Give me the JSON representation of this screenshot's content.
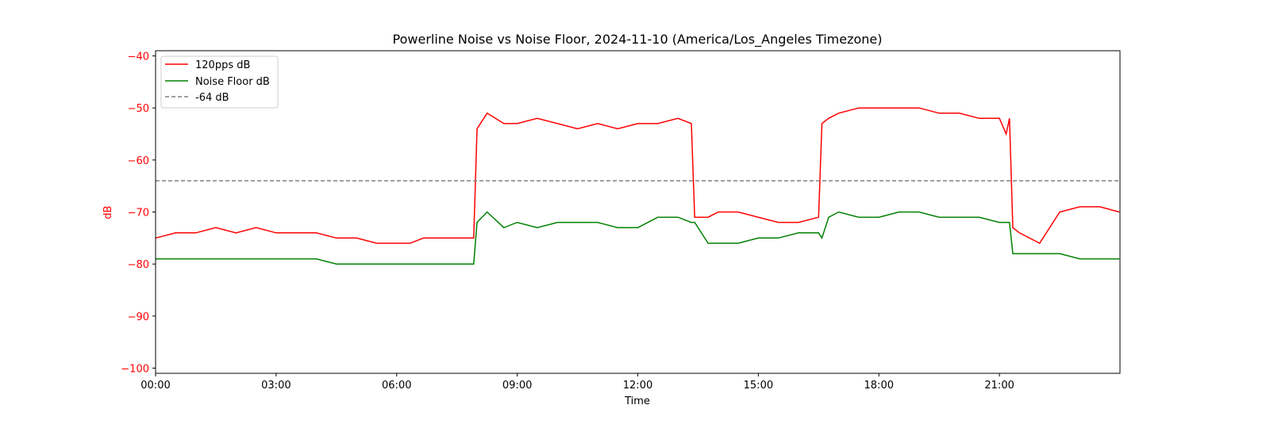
{
  "chart_data": {
    "type": "line",
    "title": "Powerline Noise vs Noise Floor, 2024-11-10 (America/Los_Angeles Timezone)",
    "xlabel": "Time",
    "ylabel": "dB",
    "xlim": [
      "00:00",
      "24:00"
    ],
    "ylim": [
      -101,
      -39
    ],
    "x_tick_labels": [
      "00:00",
      "03:00",
      "06:00",
      "09:00",
      "12:00",
      "15:00",
      "18:00",
      "21:00"
    ],
    "y_tick_labels": [
      "−40",
      "−50",
      "−60",
      "−70",
      "−80",
      "−90",
      "−100"
    ],
    "y_tick_values": [
      -40,
      -50,
      -60,
      -70,
      -80,
      -90,
      -100
    ],
    "legend_position": "top-left",
    "grid": false,
    "series": [
      {
        "name": "120pps dB",
        "color": "#ff0000",
        "x": [
          "00:00",
          "00:30",
          "01:00",
          "01:30",
          "02:00",
          "02:30",
          "03:00",
          "03:30",
          "04:00",
          "04:30",
          "05:00",
          "05:30",
          "06:00",
          "06:20",
          "06:40",
          "07:00",
          "07:30",
          "07:55",
          "08:00",
          "08:15",
          "08:40",
          "09:00",
          "09:30",
          "10:00",
          "10:30",
          "11:00",
          "11:30",
          "12:00",
          "12:30",
          "13:00",
          "13:20",
          "13:25",
          "13:45",
          "14:00",
          "14:30",
          "15:00",
          "15:30",
          "16:00",
          "16:30",
          "16:35",
          "16:45",
          "17:00",
          "17:30",
          "18:00",
          "18:30",
          "19:00",
          "19:30",
          "20:00",
          "20:30",
          "21:00",
          "21:10",
          "21:15",
          "21:20",
          "21:30",
          "22:00",
          "22:30",
          "23:00",
          "23:30",
          "23:59"
        ],
        "values": [
          -75,
          -74,
          -74,
          -73,
          -74,
          -73,
          -74,
          -74,
          -74,
          -75,
          -75,
          -76,
          -76,
          -76,
          -75,
          -75,
          -75,
          -75,
          -54,
          -51,
          -53,
          -53,
          -52,
          -53,
          -54,
          -53,
          -54,
          -53,
          -53,
          -52,
          -53,
          -71,
          -71,
          -70,
          -70,
          -71,
          -72,
          -72,
          -71,
          -53,
          -52,
          -51,
          -50,
          -50,
          -50,
          -50,
          -51,
          -51,
          -52,
          -52,
          -55,
          -52,
          -73,
          -74,
          -76,
          -70,
          -69,
          -69,
          -70
        ]
      },
      {
        "name": "Noise Floor dB",
        "color": "#008000",
        "x": [
          "00:00",
          "00:30",
          "01:00",
          "01:30",
          "02:00",
          "02:30",
          "03:00",
          "03:30",
          "04:00",
          "04:30",
          "05:00",
          "05:30",
          "06:00",
          "06:30",
          "07:00",
          "07:30",
          "07:55",
          "08:00",
          "08:15",
          "08:40",
          "09:00",
          "09:30",
          "10:00",
          "10:30",
          "11:00",
          "11:30",
          "12:00",
          "12:30",
          "13:00",
          "13:20",
          "13:25",
          "13:45",
          "14:00",
          "14:30",
          "15:00",
          "15:30",
          "16:00",
          "16:30",
          "16:35",
          "16:45",
          "17:00",
          "17:30",
          "18:00",
          "18:30",
          "19:00",
          "19:30",
          "20:00",
          "20:30",
          "21:00",
          "21:15",
          "21:20",
          "21:30",
          "22:00",
          "22:30",
          "23:00",
          "23:30",
          "23:59"
        ],
        "values": [
          -79,
          -79,
          -79,
          -79,
          -79,
          -79,
          -79,
          -79,
          -79,
          -80,
          -80,
          -80,
          -80,
          -80,
          -80,
          -80,
          -80,
          -72,
          -70,
          -73,
          -72,
          -73,
          -72,
          -72,
          -72,
          -73,
          -73,
          -71,
          -71,
          -72,
          -72,
          -76,
          -76,
          -76,
          -75,
          -75,
          -74,
          -74,
          -75,
          -71,
          -70,
          -71,
          -71,
          -70,
          -70,
          -71,
          -71,
          -71,
          -72,
          -72,
          -78,
          -78,
          -78,
          -78,
          -79,
          -79,
          -79
        ]
      },
      {
        "name": "-64 dB",
        "color": "#808080",
        "dashed": true,
        "x": [
          "00:00",
          "23:59"
        ],
        "values": [
          -64,
          -64
        ]
      }
    ]
  }
}
